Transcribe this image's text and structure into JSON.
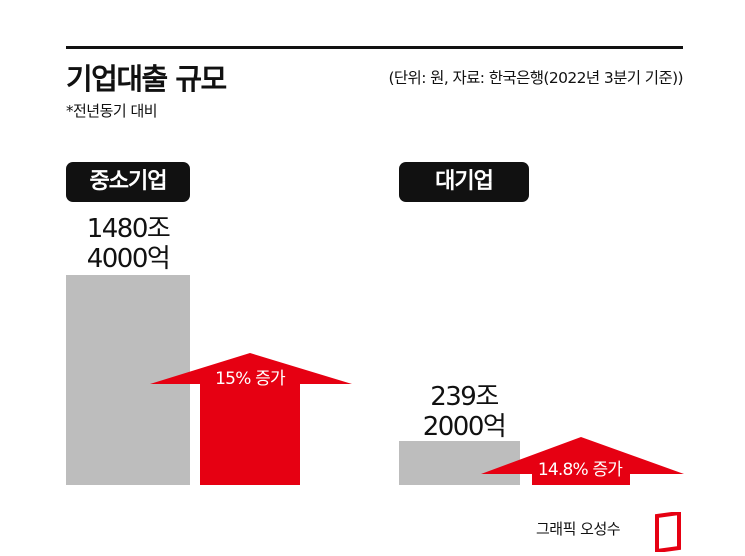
{
  "header": {
    "title": "기업대출 규모",
    "subtitle": "*전년동기 대비",
    "source": "(단위: 원, 자료: 한국은행(2022년 3분기 기준))"
  },
  "chart_data": {
    "type": "bar",
    "categories": [
      "중소기업",
      "대기업"
    ],
    "series": [
      {
        "values": [
          1480.4,
          239.2
        ]
      }
    ],
    "value_labels": [
      "1480조\n4000억",
      "239조\n2000억"
    ],
    "annotations": [
      "15% 증가",
      "14.8% 증가"
    ],
    "growth_pct": [
      15,
      14.8
    ],
    "unit": "원",
    "colors": {
      "bar": "#bdbdbd",
      "arrow": "#e60012",
      "pill": "#111111"
    }
  },
  "labels": {
    "sme": "중소기업",
    "large": "대기업",
    "sme_value": "1480조\n4000억",
    "large_value": "239조\n2000억",
    "sme_growth": "15% 증가",
    "large_growth": "14.8% 증가"
  },
  "credit": "그래픽 오성수"
}
